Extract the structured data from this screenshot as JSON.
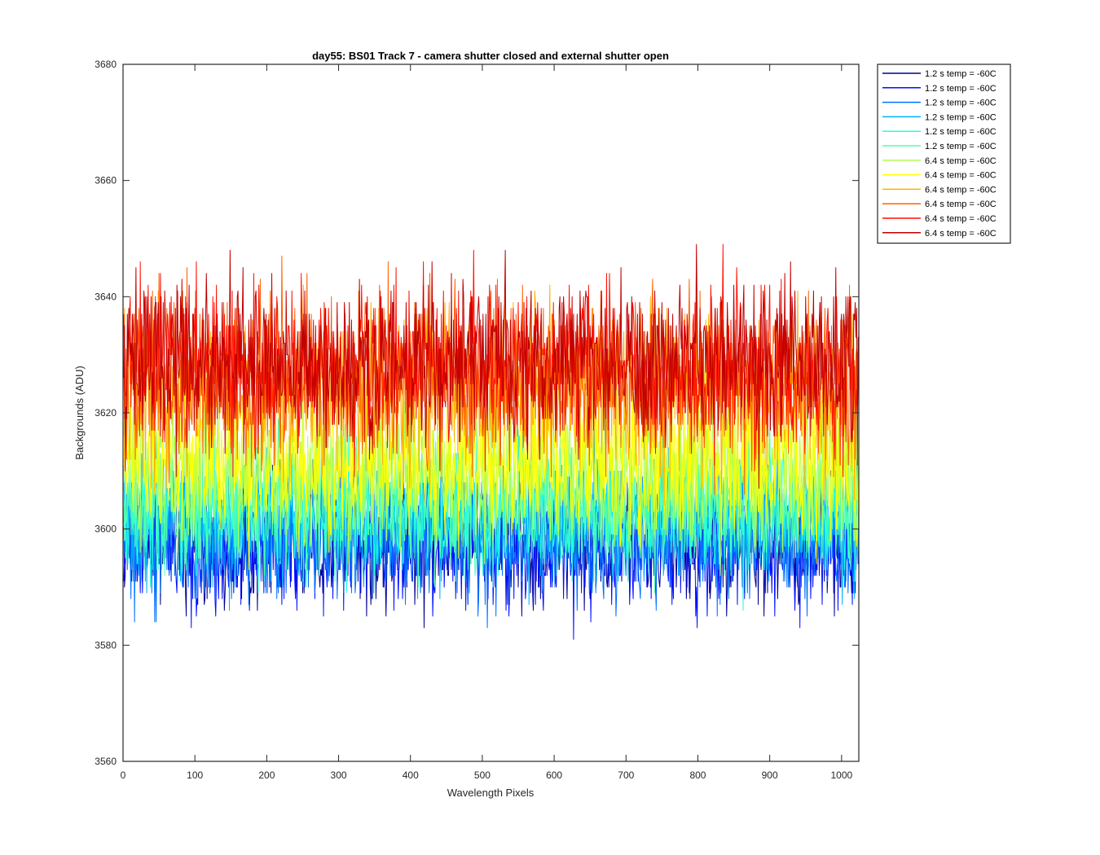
{
  "chart_data": {
    "type": "line",
    "title": "day55: BS01  Track 7 - camera shutter closed and external shutter open",
    "xlabel": "Wavelength Pixels",
    "ylabel": "Backgrounds (ADU)",
    "xlim": [
      0,
      1024
    ],
    "ylim": [
      3560,
      3680
    ],
    "xticks": [
      0,
      100,
      200,
      300,
      400,
      500,
      600,
      700,
      800,
      900,
      1000
    ],
    "yticks": [
      3560,
      3580,
      3600,
      3620,
      3640,
      3660,
      3680
    ],
    "grid": false,
    "legend_position": "outside-top-right",
    "series": [
      {
        "name": "1.2 s temp = -60C",
        "color": "#00008f",
        "mean": 3598,
        "std": 5.5
      },
      {
        "name": "1.2 s temp = -60C",
        "color": "#0010ff",
        "mean": 3597,
        "std": 5.5
      },
      {
        "name": "1.2 s temp = -60C",
        "color": "#0070ff",
        "mean": 3599,
        "std": 5.5
      },
      {
        "name": "1.2 s temp = -60C",
        "color": "#00b0ff",
        "mean": 3602,
        "std": 5.5
      },
      {
        "name": "1.2 s temp = -60C",
        "color": "#20ffdf",
        "mean": 3603,
        "std": 5.5
      },
      {
        "name": "1.2 s temp = -60C",
        "color": "#50ffaf",
        "mean": 3604,
        "std": 5.5
      },
      {
        "name": "6.4 s temp = -60C",
        "color": "#afff50",
        "mean": 3610,
        "std": 6.5
      },
      {
        "name": "6.4 s temp = -60C",
        "color": "#ffff00",
        "mean": 3612,
        "std": 6.5
      },
      {
        "name": "6.4 s temp = -60C",
        "color": "#ffaf00",
        "mean": 3624,
        "std": 7.0
      },
      {
        "name": "6.4 s temp = -60C",
        "color": "#ff6000",
        "mean": 3626,
        "std": 7.0
      },
      {
        "name": "6.4 s temp = -60C",
        "color": "#ff1000",
        "mean": 3628,
        "std": 7.0
      },
      {
        "name": "6.4 s temp = -60C",
        "color": "#c00000",
        "mean": 3629,
        "std": 7.0
      }
    ],
    "n_points": 1024
  }
}
